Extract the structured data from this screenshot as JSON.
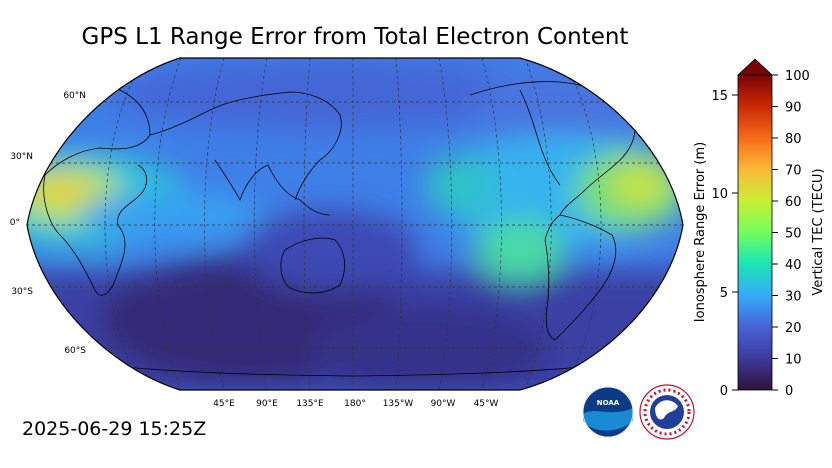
{
  "title": "GPS L1 Range Error from Total Electron Content",
  "timestamp": "2025-06-29 15:25Z",
  "map": {
    "projection": "Robinson",
    "lat_labels": [
      "60°N",
      "30°N",
      "0°",
      "30°S",
      "60°S"
    ],
    "lon_labels": [
      "45°E",
      "90°E",
      "135°E",
      "180°",
      "135°W",
      "90°W",
      "45°W"
    ]
  },
  "colorbar": {
    "left_axis_title": "Ionosphere Range Error (m)",
    "left_ticks": [
      "0",
      "5",
      "10",
      "15"
    ],
    "right_axis_title": "Vertical TEC (TECU)",
    "right_ticks": [
      "0",
      "10",
      "20",
      "30",
      "40",
      "50",
      "60",
      "70",
      "80",
      "90",
      "100"
    ],
    "extend": "max",
    "colors": [
      "#30123b",
      "#3e3a9a",
      "#4662d7",
      "#36aaf9",
      "#1ae4b6",
      "#72fe5e",
      "#c8ef34",
      "#faba39",
      "#f66b19",
      "#ca2a04",
      "#7a0403"
    ]
  },
  "logos": [
    {
      "name": "NOAA",
      "text": "NOAA"
    },
    {
      "name": "National Weather Service",
      "text": "NATIONAL WEATHER SERVICE"
    }
  ]
}
